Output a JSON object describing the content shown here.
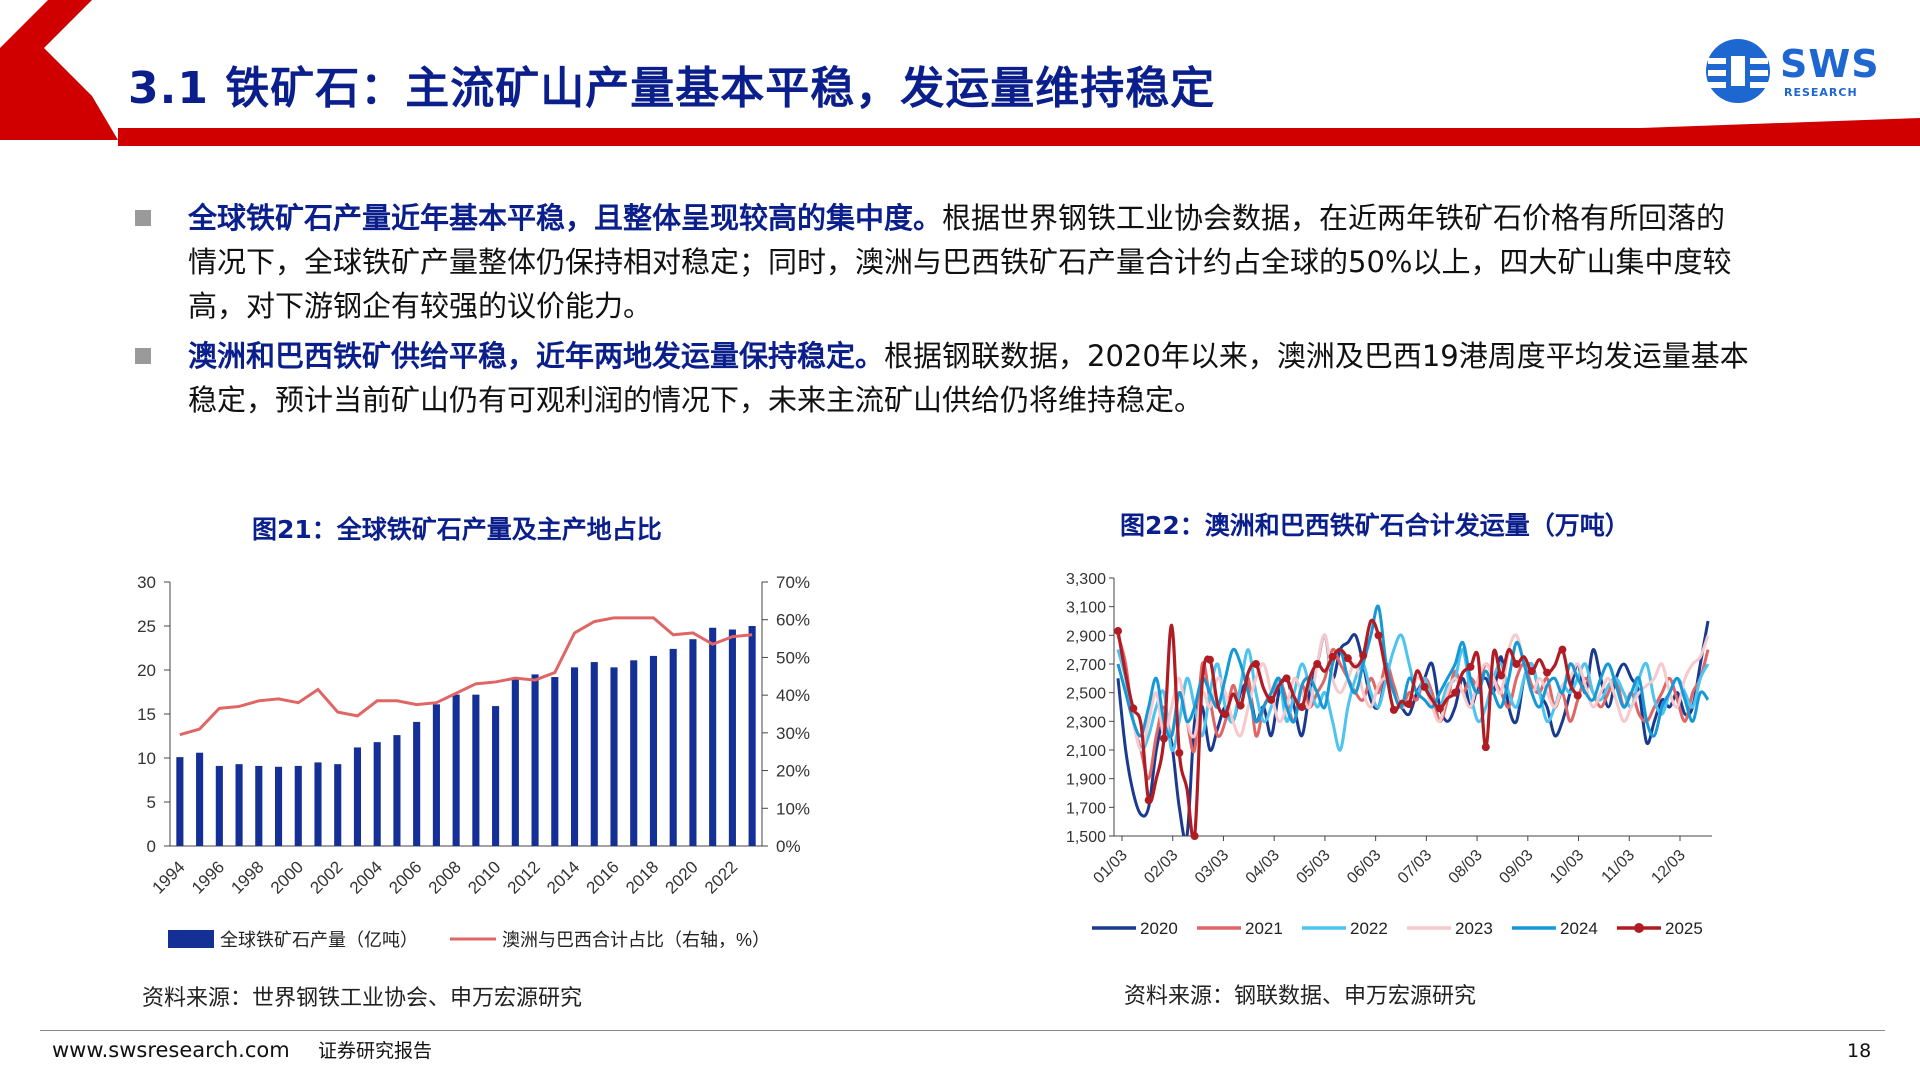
{
  "header": {
    "title": "3.1 铁矿石：主流矿山产量基本平稳，发运量维持稳定",
    "logo_text": "SWS",
    "logo_sub": "RESEARCH"
  },
  "bullets": [
    {
      "bold": "全球铁矿石产量近年基本平稳，且整体呈现较高的集中度。",
      "text": "根据世界钢铁工业协会数据，在近两年铁矿石价格有所回落的情况下，全球铁矿产量整体仍保持相对稳定；同时，澳洲与巴西铁矿石产量合计约占全球的50%以上，四大矿山集中度较高，对下游钢企有较强的议价能力。"
    },
    {
      "bold": "澳洲和巴西铁矿供给平稳，近年两地发运量保持稳定。",
      "text": "根据钢联数据，2020年以来，澳洲及巴西19港周度平均发运量基本稳定，预计当前矿山仍有可观利润的情况下，未来主流矿山供给仍将维持稳定。"
    }
  ],
  "figures": {
    "fig21_title": "图21：全球铁矿石产量及主产地占比",
    "fig21_source": "资料来源：世界钢铁工业协会、申万宏源研究",
    "fig22_title": "图22：澳洲和巴西铁矿石合计发运量（万吨）",
    "fig22_source": "资料来源：钢联数据、申万宏源研究"
  },
  "footer": {
    "url": "www.swsresearch.com",
    "report": "证券研究报告",
    "page": "18"
  },
  "colors": {
    "brand_blue": "#0b1f8c",
    "accent_red": "#d00000",
    "bar_blue": "#142f96",
    "line_red": "#e06666"
  },
  "chart_data": [
    {
      "type": "bar",
      "years": [
        1994,
        1995,
        1996,
        1997,
        1998,
        1999,
        2000,
        2001,
        2002,
        2003,
        2004,
        2005,
        2006,
        2007,
        2008,
        2009,
        2010,
        2011,
        2012,
        2013,
        2014,
        2015,
        2016,
        2017,
        2018,
        2019,
        2020,
        2021,
        2022,
        2023
      ],
      "x_tick_labels": [
        "1994",
        "1996",
        "1998",
        "2000",
        "2002",
        "2004",
        "2006",
        "2008",
        "2010",
        "2012",
        "2014",
        "2016",
        "2018",
        "2020",
        "2022"
      ],
      "series": [
        {
          "name": "全球铁矿石产量（亿吨）",
          "axis": "left",
          "type": "bar",
          "values": [
            10.1,
            10.6,
            9.1,
            9.3,
            9.1,
            9.0,
            9.1,
            9.5,
            9.3,
            11.2,
            11.8,
            12.6,
            14.1,
            16.1,
            17.2,
            17.2,
            15.9,
            19.0,
            19.5,
            19.2,
            20.3,
            20.9,
            20.3,
            21.1,
            21.6,
            22.4,
            23.5,
            24.8,
            24.6,
            25.0
          ]
        },
        {
          "name": "澳洲与巴西合计占比（右轴，%）",
          "axis": "right",
          "type": "line",
          "values": [
            29.5,
            31.0,
            36.5,
            37.0,
            38.5,
            39.0,
            38.0,
            41.5,
            35.5,
            34.5,
            38.5,
            38.5,
            37.5,
            38.0,
            40.5,
            43.0,
            43.5,
            44.5,
            44.0,
            46.0,
            56.5,
            59.5,
            60.5,
            60.5,
            60.5,
            56.0,
            56.5,
            53.5,
            55.5,
            56.0
          ]
        }
      ],
      "left_axis": {
        "ylim": [
          0,
          30
        ],
        "ticks": [
          "0",
          "5",
          "10",
          "15",
          "20",
          "25",
          "30"
        ]
      },
      "right_axis": {
        "ylim": [
          0,
          70
        ],
        "ticks": [
          "0%",
          "10%",
          "20%",
          "30%",
          "40%",
          "50%",
          "60%",
          "70%"
        ]
      },
      "legend_placement": "bottom"
    },
    {
      "type": "line",
      "x_tick_labels": [
        "01/03",
        "02/03",
        "03/03",
        "04/03",
        "05/03",
        "06/03",
        "07/03",
        "08/03",
        "09/03",
        "10/03",
        "11/03",
        "12/03"
      ],
      "y_axis": {
        "ylim": [
          1500,
          3300
        ],
        "ticks": [
          "1,500",
          "1,700",
          "1,900",
          "2,100",
          "2,300",
          "2,500",
          "2,700",
          "2,900",
          "3,100",
          "3,300"
        ]
      },
      "legend_placement": "bottom",
      "series": [
        {
          "name": "2020",
          "color": "#1a3a8f",
          "marker": false,
          "values": [
            2600,
            2100,
            1800,
            1650,
            1700,
            2100,
            2300,
            2150,
            1700,
            1500,
            2300,
            2400,
            2100,
            2250,
            2400,
            2300,
            2500,
            2550,
            2300,
            2400,
            2200,
            2500,
            2600,
            2400,
            2200,
            2500,
            2700,
            2900,
            2600,
            2800,
            2850,
            2900,
            2700,
            2450,
            2400,
            2600,
            2500,
            2400,
            2350,
            2500,
            2600,
            2700,
            2400,
            2300,
            2400,
            2600,
            2400,
            2550,
            2600,
            2500,
            2750,
            2400,
            2300,
            2600,
            2700,
            2500,
            2400,
            2200,
            2300,
            2500,
            2700,
            2500,
            2800,
            2600,
            2400,
            2600,
            2700,
            2600,
            2500,
            2150,
            2300,
            2450,
            2400,
            2500,
            2350,
            2400,
            2700,
            3000
          ]
        },
        {
          "name": "2021",
          "color": "#e06666",
          "marker": false,
          "values": [
            2900,
            2700,
            2300,
            2100,
            1900,
            2200,
            2400,
            2200,
            2500,
            2300,
            2100,
            2700,
            2450,
            2200,
            2300,
            2550,
            2400,
            2600,
            2200,
            2400,
            2500,
            2600,
            2450,
            2300,
            2550,
            2400,
            2500,
            2600,
            2800,
            2700,
            2600,
            2500,
            2450,
            2600,
            2500,
            2700,
            2550,
            2400,
            2500,
            2450,
            2600,
            2500,
            2300,
            2450,
            2650,
            2500,
            2600,
            2550,
            2700,
            2600,
            2500,
            2400,
            2600,
            2700,
            2550,
            2500,
            2600,
            2400,
            2500,
            2300,
            2450,
            2600,
            2500,
            2400,
            2500,
            2600,
            2400,
            2500,
            2350,
            2300,
            2400,
            2500,
            2600,
            2450,
            2300,
            2500,
            2600,
            2800
          ]
        },
        {
          "name": "2022",
          "color": "#4dc3f0",
          "marker": false,
          "values": [
            2800,
            2600,
            2300,
            2100,
            2200,
            2400,
            2500,
            2100,
            2300,
            2600,
            2400,
            2200,
            2500,
            2700,
            2400,
            2300,
            2550,
            2800,
            2500,
            2300,
            2400,
            2600,
            2300,
            2500,
            2700,
            2550,
            2400,
            2500,
            2300,
            2100,
            2400,
            2600,
            2700,
            2500,
            2400,
            2600,
            2800,
            2900,
            2700,
            2500,
            2600,
            2450,
            2400,
            2550,
            2600,
            2800,
            2500,
            2300,
            2400,
            2600,
            2700,
            2500,
            2400,
            2600,
            2700,
            2500,
            2300,
            2400,
            2550,
            2500,
            2600,
            2700,
            2500,
            2450,
            2550,
            2600,
            2500,
            2400,
            2600,
            2700,
            2450,
            2350,
            2500,
            2600,
            2500,
            2400,
            2600,
            2700
          ]
        },
        {
          "name": "2023",
          "color": "#f6c9cc",
          "marker": false,
          "values": [
            2700,
            2500,
            2300,
            2100,
            2300,
            2500,
            2200,
            2400,
            2600,
            2300,
            2200,
            2500,
            2400,
            2600,
            2500,
            2300,
            2200,
            2400,
            2600,
            2700,
            2500,
            2300,
            2400,
            2600,
            2500,
            2400,
            2700,
            2900,
            2600,
            2500,
            2600,
            2700,
            2500,
            2400,
            2550,
            2600,
            2500,
            2400,
            2450,
            2600,
            2550,
            2400,
            2300,
            2500,
            2600,
            2500,
            2400,
            2600,
            2700,
            2600,
            2500,
            2800,
            2900,
            2700,
            2500,
            2600,
            2500,
            2400,
            2550,
            2600,
            2700,
            2550,
            2400,
            2500,
            2600,
            2450,
            2300,
            2400,
            2500,
            2550,
            2600,
            2700,
            2500,
            2400,
            2600,
            2700,
            2750,
            2900
          ]
        },
        {
          "name": "2024",
          "color": "#1499d6",
          "marker": false,
          "values": [
            2700,
            2500,
            2300,
            2200,
            2400,
            2600,
            2300,
            2200,
            2500,
            2300,
            2400,
            2600,
            2500,
            2400,
            2600,
            2800,
            2700,
            2500,
            2300,
            2400,
            2500,
            2600,
            2400,
            2300,
            2550,
            2600,
            2500,
            2400,
            2700,
            2800,
            2600,
            2500,
            2700,
            2900,
            3100,
            2700,
            2500,
            2400,
            2600,
            2500,
            2450,
            2400,
            2500,
            2600,
            2700,
            2850,
            2600,
            2500,
            2650,
            2500,
            2400,
            2600,
            2850,
            2700,
            2500,
            2400,
            2550,
            2600,
            2500,
            2700,
            2600,
            2500,
            2450,
            2600,
            2700,
            2550,
            2400,
            2500,
            2600,
            2300,
            2200,
            2400,
            2500,
            2600,
            2450,
            2300,
            2500,
            2450
          ]
        },
        {
          "name": "2025",
          "color": "#b01c24",
          "marker": true,
          "values": [
            2930,
            2630,
            2390,
            2280,
            1750,
            1900,
            2180,
            2970,
            2080,
            1830,
            1500,
            2580,
            2730,
            2420,
            2350,
            2490,
            2410,
            2640,
            2700,
            2530,
            2450,
            2550,
            2600,
            2470,
            2400,
            2600,
            2700,
            2650,
            2750,
            2800,
            2740,
            2680,
            2760,
            3000,
            2900,
            2640,
            2380,
            2440,
            2420,
            2650,
            2540,
            2450,
            2390,
            2460,
            2500,
            2640,
            2680,
            2750,
            2120,
            2780,
            2620,
            2800,
            2700,
            2750,
            2650,
            2730,
            2640,
            2690,
            2800,
            2560,
            2480
          ]
        }
      ]
    }
  ]
}
